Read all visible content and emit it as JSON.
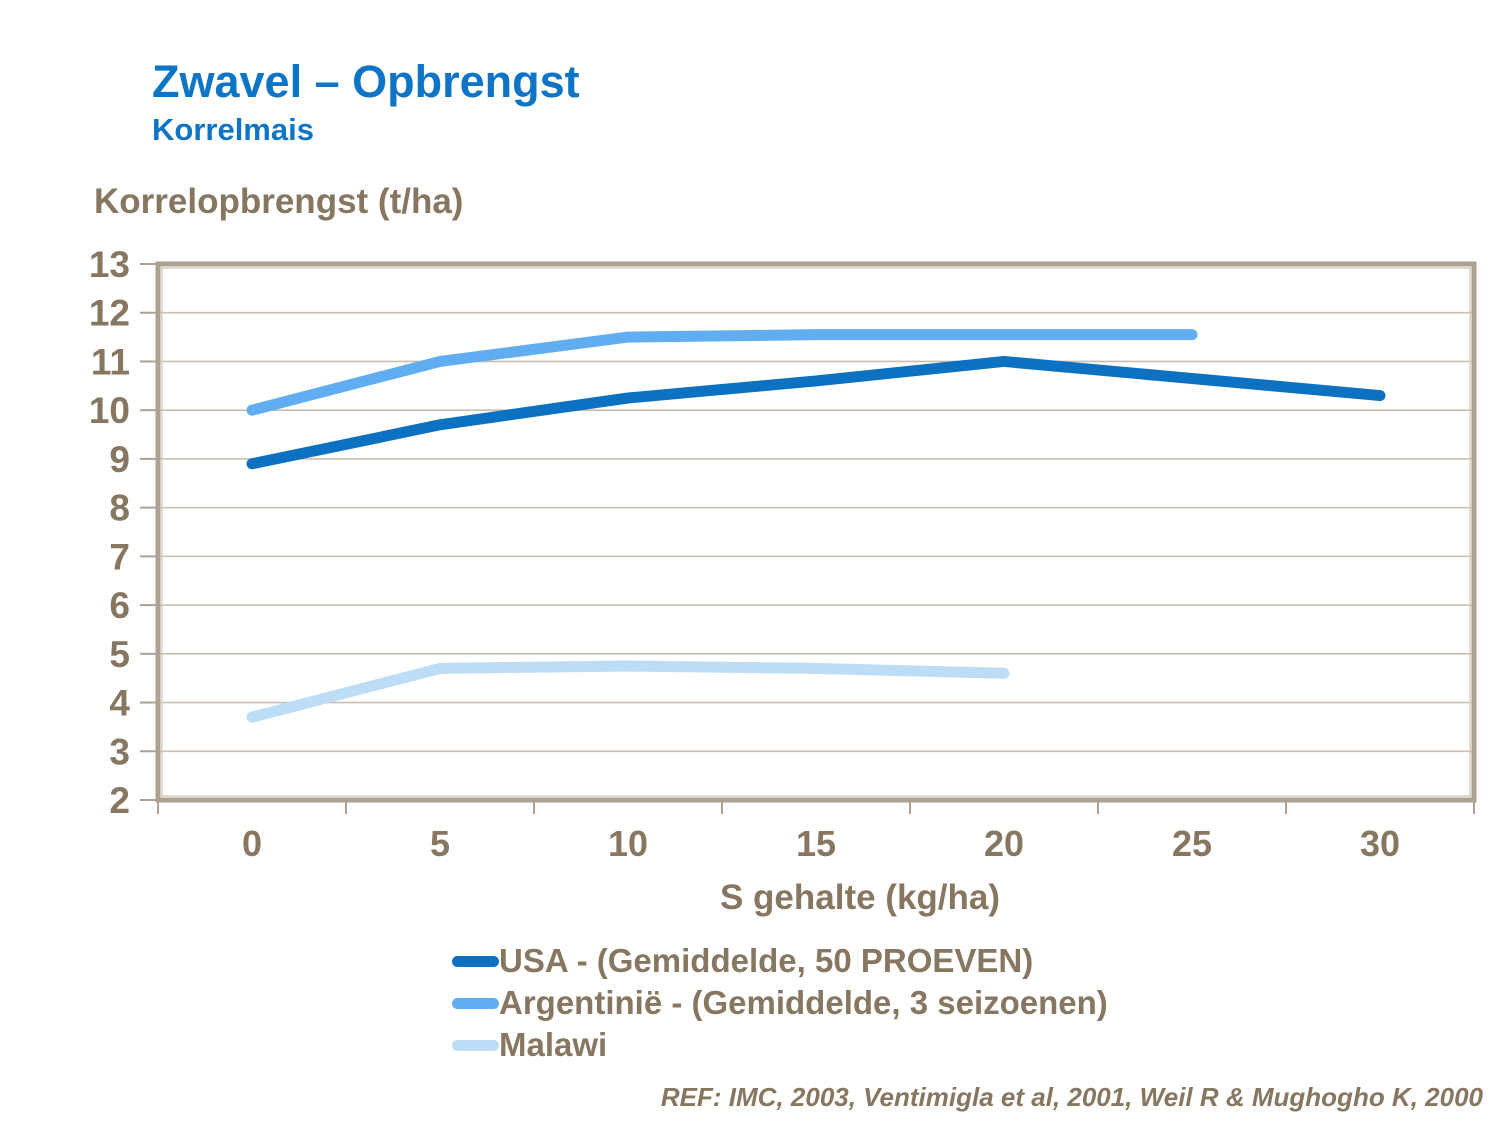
{
  "slide": {
    "title": "Zwavel – Opbrengst",
    "subtitle": "Korrelmais",
    "reference": "REF: IMC, 2003, Ventimigla et al, 2001, Weil R & Mughogho K, 2000"
  },
  "chart_data": {
    "type": "line",
    "title": "",
    "ylabel": "Korrelopbrengst (t/ha)",
    "xlabel": "S gehalte (kg/ha)",
    "categories": [
      0,
      5,
      10,
      15,
      20,
      25,
      30
    ],
    "x_tick_labels": [
      "0",
      "5",
      "10",
      "15",
      "20",
      "25",
      "30"
    ],
    "y_ticks": [
      2,
      3,
      4,
      5,
      6,
      7,
      8,
      9,
      10,
      11,
      12,
      13
    ],
    "ylim": [
      2,
      13
    ],
    "grid": true,
    "legend_position": "bottom",
    "series": [
      {
        "name": "USA - (Gemiddelde, 50 PROEVEN)",
        "color": "#0d71c2",
        "values": [
          8.9,
          9.7,
          10.25,
          10.6,
          11.0,
          10.65,
          10.3
        ]
      },
      {
        "name": "Argentinië - (Gemiddelde, 3 seizoenen)",
        "color": "#61adf1",
        "values": [
          10.0,
          11.0,
          11.5,
          11.55,
          11.55,
          11.55
        ]
      },
      {
        "name": "Malawi",
        "color": "#bddcf6",
        "values": [
          3.7,
          4.7,
          4.75,
          4.7,
          4.6
        ]
      }
    ]
  },
  "theme": {
    "title_color": "#0d74c6",
    "text_color": "#877660",
    "grid_color": "#c9bfb0",
    "frame_color": "#aca192",
    "frame_inner_color": "#d8cfc1",
    "background": "#ffffff"
  }
}
